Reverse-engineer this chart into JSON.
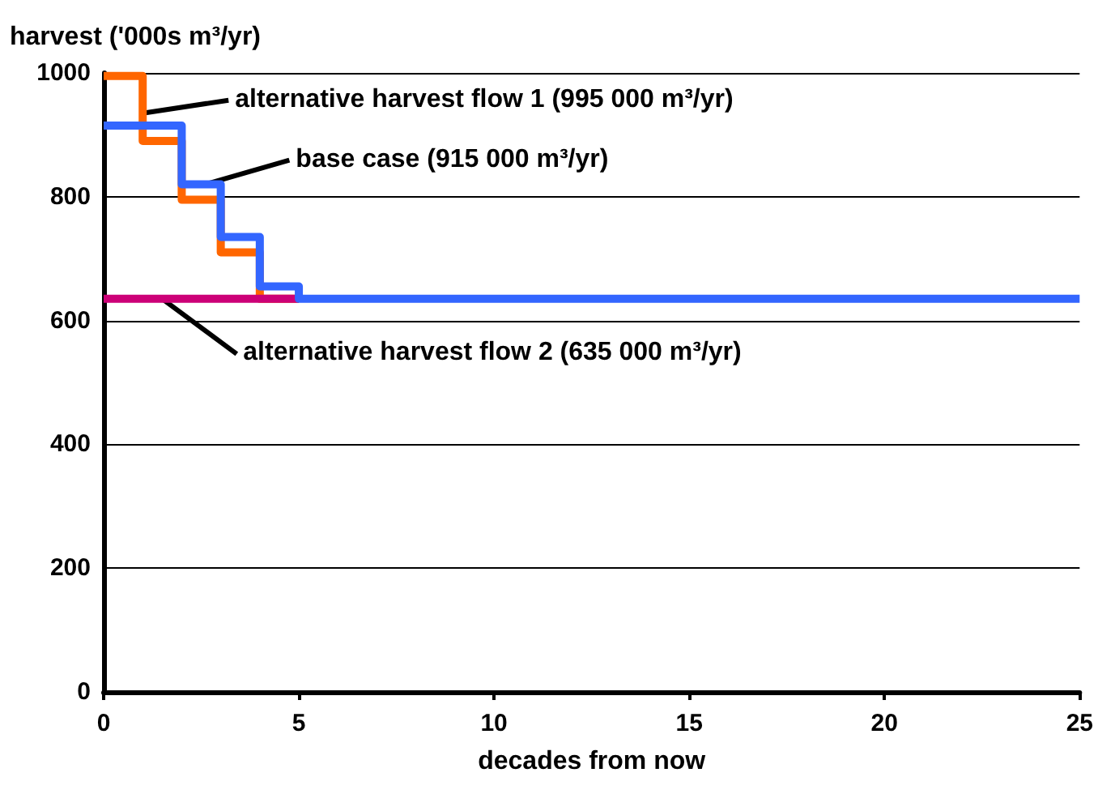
{
  "chart_data": {
    "type": "step",
    "xlabel": "decades from now",
    "ylabel": "harvest ('000s m³/yr)",
    "xlim": [
      0,
      25
    ],
    "xticks": [
      0,
      5,
      10,
      15,
      20,
      25
    ],
    "ylim": [
      0,
      1000
    ],
    "yticks": [
      0,
      200,
      400,
      600,
      800,
      1000
    ],
    "grid": "y",
    "marker": "none",
    "line_style": "solid",
    "series": [
      {
        "color": "#ff6600",
        "x": [
          0,
          1,
          2,
          3,
          4,
          5
        ],
        "values": [
          995,
          890,
          795,
          710,
          635,
          635
        ]
      },
      {
        "color": "#cc0077",
        "x": [
          0,
          5
        ],
        "values": [
          635,
          635
        ]
      },
      {
        "color": "#3366ff",
        "x": [
          0,
          1,
          2,
          3,
          4,
          5,
          25
        ],
        "values": [
          915,
          915,
          820,
          735,
          655,
          635,
          635
        ]
      }
    ],
    "annotations": [
      {
        "text": "alternative harvest flow 1 (995 000 m³/yr)",
        "x": 1,
        "y": 935
      },
      {
        "text": "base case (915 000 m³/yr)",
        "x": 2.6,
        "y": 820
      },
      {
        "text": "alternative harvest flow 2 (635 000 m³/yr)",
        "x": 1.5,
        "y": 635
      }
    ]
  }
}
